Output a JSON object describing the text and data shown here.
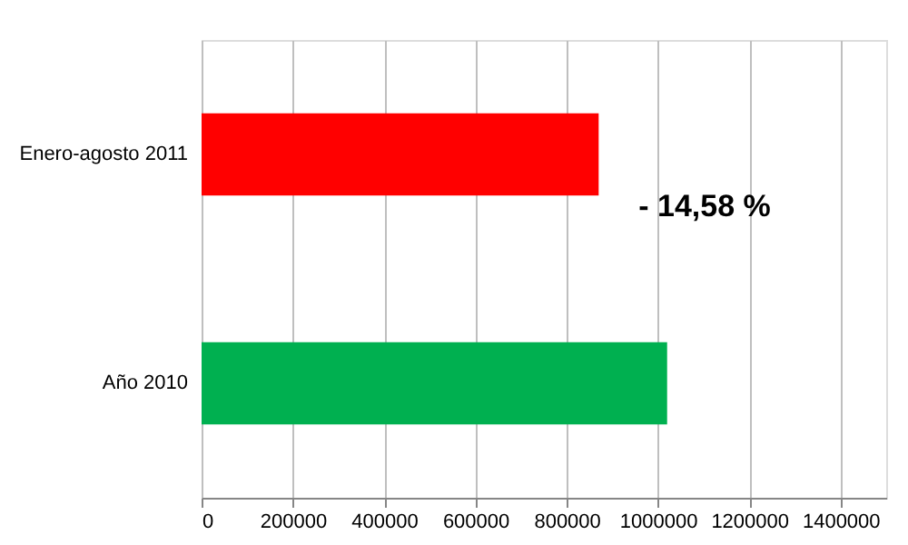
{
  "chart_data": {
    "type": "bar",
    "orientation": "horizontal",
    "categories": [
      "Enero-agosto 2011",
      "Año 2010"
    ],
    "values": [
      870000,
      1020000
    ],
    "colors": [
      "#ff0000",
      "#00b050"
    ],
    "xlim": [
      0,
      1500000
    ],
    "xticks": [
      0,
      200000,
      400000,
      600000,
      800000,
      1000000,
      1200000,
      1400000
    ],
    "grid": "x",
    "annotations": [
      "-   14,58  %"
    ]
  }
}
